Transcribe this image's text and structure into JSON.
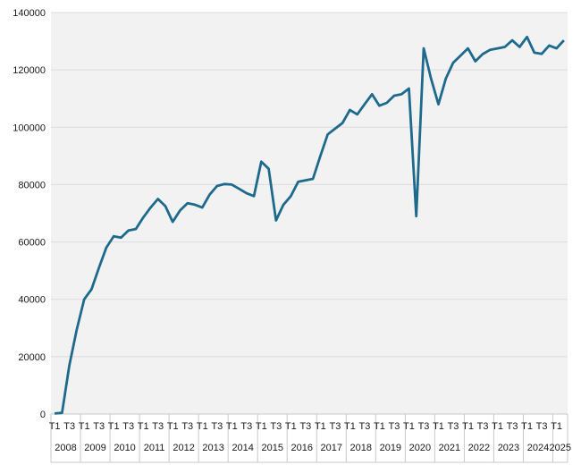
{
  "chart": {
    "title": "",
    "legend": "none",
    "colors": {
      "line": "#1e6a8d",
      "plot_background": "#f2f2f2",
      "gridline": "#dcdcdc",
      "axis_line": "#c9c9c9",
      "text": "#1a1a1a"
    },
    "y_axis": {
      "min": 0,
      "max": 140000,
      "step": 20000,
      "tick_labels": [
        "0",
        "20000",
        "40000",
        "60000",
        "80000",
        "100000",
        "120000",
        "140000"
      ]
    },
    "x_axis": {
      "years": [
        "2008",
        "2009",
        "2010",
        "2011",
        "2012",
        "2013",
        "2014",
        "2015",
        "2016",
        "2017",
        "2018",
        "2019",
        "2020",
        "2021",
        "2022",
        "2023",
        "2024",
        "2025"
      ],
      "shown_quarter_labels": [
        "T1",
        "T3"
      ],
      "last_year_quarters": 2
    }
  },
  "chart_data": {
    "type": "line",
    "series_name": "",
    "x": [
      "2008-T1",
      "2008-T2",
      "2008-T3",
      "2008-T4",
      "2009-T1",
      "2009-T2",
      "2009-T3",
      "2009-T4",
      "2010-T1",
      "2010-T2",
      "2010-T3",
      "2010-T4",
      "2011-T1",
      "2011-T2",
      "2011-T3",
      "2011-T4",
      "2012-T1",
      "2012-T2",
      "2012-T3",
      "2012-T4",
      "2013-T1",
      "2013-T2",
      "2013-T3",
      "2013-T4",
      "2014-T1",
      "2014-T2",
      "2014-T3",
      "2014-T4",
      "2015-T1",
      "2015-T2",
      "2015-T3",
      "2015-T4",
      "2016-T1",
      "2016-T2",
      "2016-T3",
      "2016-T4",
      "2017-T1",
      "2017-T2",
      "2017-T3",
      "2017-T4",
      "2018-T1",
      "2018-T2",
      "2018-T3",
      "2018-T4",
      "2019-T1",
      "2019-T2",
      "2019-T3",
      "2019-T4",
      "2020-T1",
      "2020-T2",
      "2020-T3",
      "2020-T4",
      "2021-T1",
      "2021-T2",
      "2021-T3",
      "2021-T4",
      "2022-T1",
      "2022-T2",
      "2022-T3",
      "2022-T4",
      "2023-T1",
      "2023-T2",
      "2023-T3",
      "2023-T4",
      "2024-T1",
      "2024-T2",
      "2024-T3",
      "2024-T4",
      "2025-T1",
      "2025-T2"
    ],
    "values": [
      200,
      400,
      17000,
      29500,
      40000,
      43500,
      51000,
      58000,
      62000,
      61500,
      64000,
      64500,
      68500,
      72000,
      75000,
      72500,
      67000,
      71000,
      73500,
      73000,
      72000,
      76500,
      79500,
      80200,
      80000,
      78500,
      77000,
      76000,
      88000,
      85500,
      67500,
      73000,
      76000,
      81000,
      81500,
      82000,
      90000,
      97500,
      99500,
      101500,
      106000,
      104500,
      108000,
      111500,
      107500,
      108500,
      111000,
      111500,
      113500,
      69000,
      127500,
      117000,
      108000,
      117000,
      122500,
      125000,
      127500,
      123000,
      125500,
      127000,
      127500,
      128000,
      130300,
      128000,
      131500,
      126000,
      125600,
      128500,
      127500,
      130300
    ],
    "ylim": [
      0,
      140000
    ],
    "grid": "horizontal",
    "legend_position": "none"
  }
}
